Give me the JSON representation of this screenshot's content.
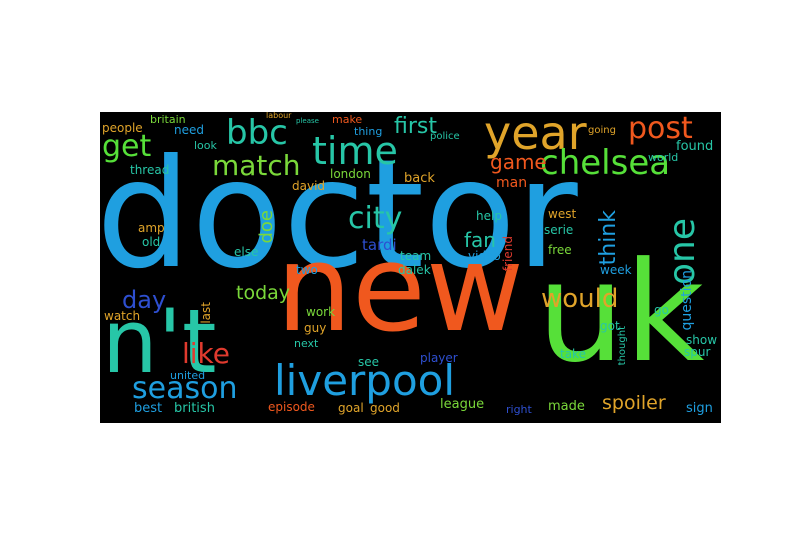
{
  "palette": {
    "background": "#000000",
    "blue": "#1f9fe0",
    "orange": "#f0581e",
    "green": "#56e039",
    "darkblue": "#2e4fd0",
    "gold": "#e0a42a",
    "teal": "#27c6a7",
    "lime": "#7ad83a",
    "red": "#e03a2e"
  },
  "words": [
    {
      "text": "doctor",
      "color": "blue"
    },
    {
      "text": "new",
      "color": "orange"
    },
    {
      "text": "uk",
      "color": "green"
    },
    {
      "text": "n't",
      "color": "teal"
    },
    {
      "text": "year",
      "color": "gold"
    },
    {
      "text": "liverpool",
      "color": "blue"
    },
    {
      "text": "time",
      "color": "teal"
    },
    {
      "text": "chelsea",
      "color": "green"
    },
    {
      "text": "bbc",
      "color": "teal"
    },
    {
      "text": "one",
      "color": "teal"
    },
    {
      "text": "city",
      "color": "teal"
    },
    {
      "text": "post",
      "color": "orange"
    },
    {
      "text": "match",
      "color": "lime"
    },
    {
      "text": "get",
      "color": "green"
    },
    {
      "text": "like",
      "color": "red"
    },
    {
      "text": "season",
      "color": "blue"
    },
    {
      "text": "would",
      "color": "gold"
    },
    {
      "text": "day",
      "color": "darkblue"
    },
    {
      "text": "first",
      "color": "teal"
    },
    {
      "text": "game",
      "color": "orange"
    },
    {
      "text": "think",
      "color": "blue"
    },
    {
      "text": "today",
      "color": "lime"
    },
    {
      "text": "spoiler",
      "color": "gold"
    },
    {
      "text": "fan",
      "color": "teal"
    },
    {
      "text": "doe",
      "color": "lime"
    },
    {
      "text": "question",
      "color": "blue"
    },
    {
      "text": "tardi",
      "color": "darkblue"
    },
    {
      "text": "episode",
      "color": "orange"
    },
    {
      "text": "best",
      "color": "blue"
    },
    {
      "text": "british",
      "color": "teal"
    },
    {
      "text": "league",
      "color": "lime"
    },
    {
      "text": "goal",
      "color": "gold"
    },
    {
      "text": "good",
      "color": "gold"
    },
    {
      "text": "made",
      "color": "lime"
    },
    {
      "text": "right",
      "color": "darkblue"
    },
    {
      "text": "sign",
      "color": "blue"
    },
    {
      "text": "player",
      "color": "darkblue"
    },
    {
      "text": "found",
      "color": "teal"
    },
    {
      "text": "world",
      "color": "teal"
    },
    {
      "text": "show",
      "color": "teal"
    },
    {
      "text": "spur",
      "color": "teal"
    },
    {
      "text": "team",
      "color": "teal"
    },
    {
      "text": "dalek",
      "color": "teal"
    },
    {
      "text": "back",
      "color": "gold"
    },
    {
      "text": "london",
      "color": "lime"
    },
    {
      "text": "david",
      "color": "gold"
    },
    {
      "text": "man",
      "color": "orange"
    },
    {
      "text": "help",
      "color": "teal"
    },
    {
      "text": "free",
      "color": "lime"
    },
    {
      "text": "west",
      "color": "gold"
    },
    {
      "text": "serie",
      "color": "teal"
    },
    {
      "text": "week",
      "color": "blue"
    },
    {
      "text": "friend",
      "color": "red"
    },
    {
      "text": "video",
      "color": "blue"
    },
    {
      "text": "amp",
      "color": "gold"
    },
    {
      "text": "old",
      "color": "teal"
    },
    {
      "text": "else",
      "color": "teal"
    },
    {
      "text": "two",
      "color": "blue"
    },
    {
      "text": "work",
      "color": "lime"
    },
    {
      "text": "guy",
      "color": "gold"
    },
    {
      "text": "next",
      "color": "teal"
    },
    {
      "text": "see",
      "color": "teal"
    },
    {
      "text": "take",
      "color": "teal"
    },
    {
      "text": "got",
      "color": "teal"
    },
    {
      "text": "go",
      "color": "teal"
    },
    {
      "text": "thought",
      "color": "teal"
    },
    {
      "text": "last",
      "color": "gold"
    },
    {
      "text": "united",
      "color": "blue"
    },
    {
      "text": "watch",
      "color": "gold"
    },
    {
      "text": "people",
      "color": "gold"
    },
    {
      "text": "britain",
      "color": "lime"
    },
    {
      "text": "need",
      "color": "blue"
    },
    {
      "text": "look",
      "color": "teal"
    },
    {
      "text": "thread",
      "color": "teal"
    },
    {
      "text": "thing",
      "color": "blue"
    },
    {
      "text": "make",
      "color": "orange"
    },
    {
      "text": "police",
      "color": "teal"
    },
    {
      "text": "going",
      "color": "gold"
    },
    {
      "text": "labour",
      "color": "gold"
    },
    {
      "text": "please",
      "color": "teal"
    }
  ]
}
